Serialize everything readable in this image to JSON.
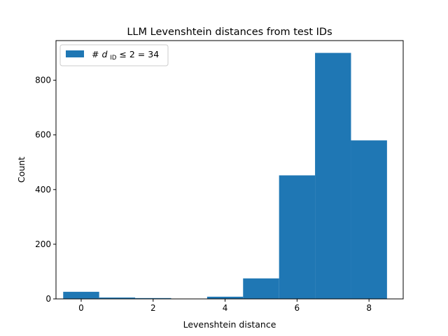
{
  "chart_data": {
    "type": "bar",
    "title": "LLM Levenshtein distances from test IDs",
    "xlabel": "Levenshtein distance",
    "ylabel": "Count",
    "xlim": [
      -0.7,
      8.95
    ],
    "ylim": [
      0,
      945
    ],
    "x_ticks": [
      0,
      2,
      4,
      6,
      8
    ],
    "y_ticks": [
      0,
      200,
      400,
      600,
      800
    ],
    "bin_width": 1,
    "x": [
      0,
      1,
      2,
      3,
      4,
      5,
      6,
      7,
      8
    ],
    "values": [
      26,
      5,
      3,
      0,
      8,
      75,
      452,
      900,
      580
    ],
    "color": "#1f77b4",
    "grid": false,
    "legend": {
      "placement": "top-left",
      "prefix": "# ",
      "symbol": "d",
      "subscript": "ID",
      "relation": " ≤ 2 = 34"
    }
  }
}
